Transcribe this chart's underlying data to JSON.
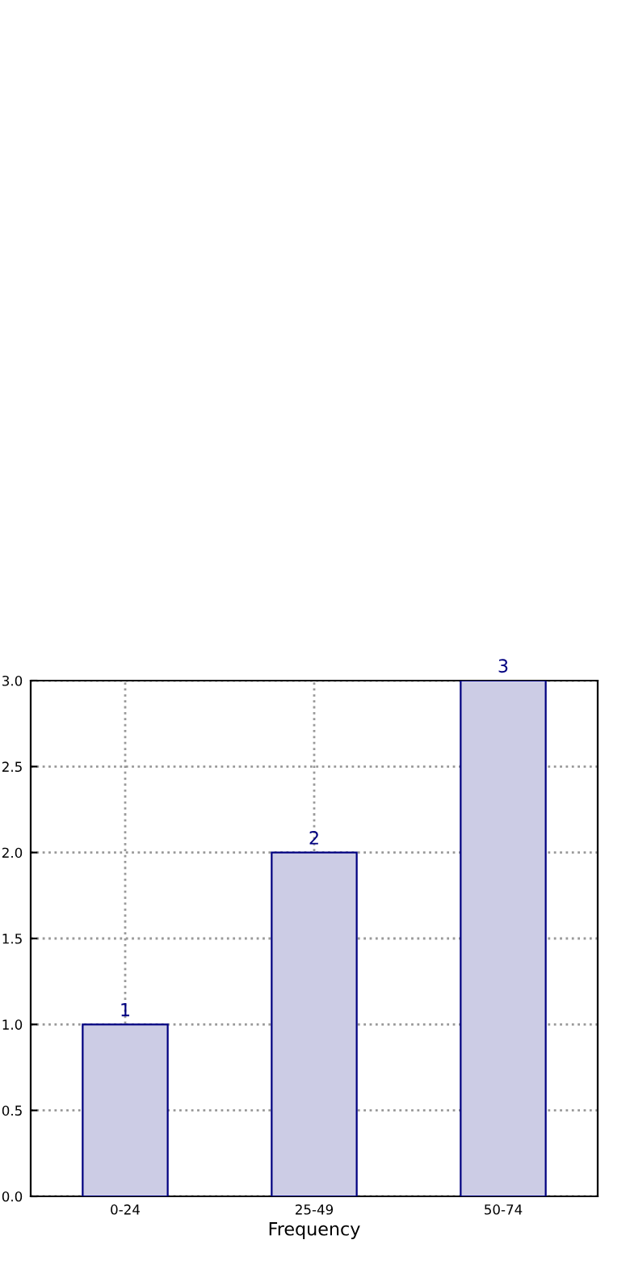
{
  "chart_data": {
    "type": "bar",
    "xlabel": "Frequency",
    "categories": [
      "0-24",
      "25-49",
      "50-74"
    ],
    "values": [
      1,
      2,
      3
    ],
    "color": "#cccce5",
    "ylim": [
      0,
      3
    ],
    "yticks": [
      {
        "value": 0,
        "label": "0.0"
      },
      {
        "value": 0.5,
        "label": "0.5"
      },
      {
        "value": 1,
        "label": "1.0"
      },
      {
        "value": 1.5,
        "label": "1.5"
      },
      {
        "value": 2,
        "label": "2.0"
      },
      {
        "value": 2.5,
        "label": "2.5"
      },
      {
        "value": 3,
        "label": "3.0"
      }
    ],
    "data_labels": true,
    "grid": true
  }
}
